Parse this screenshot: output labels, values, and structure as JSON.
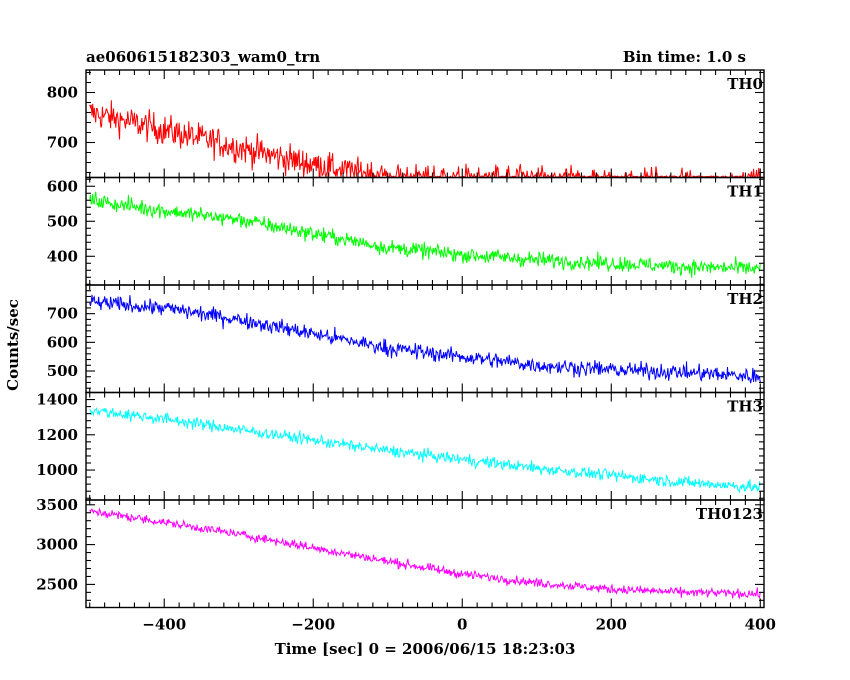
{
  "chart_data": {
    "type": "line",
    "title": "ae060615182303_wam0_trn",
    "subtitle": "Bin time: 1.0 s",
    "xlabel": "Time [sec] 0 = 2006/06/15 18:23:03",
    "ylabel": "Counts/sec",
    "xlim": [
      -505,
      405
    ],
    "x_ticks": [
      -400,
      -200,
      0,
      200,
      400
    ],
    "x_tick_labels": [
      "−400",
      "−200",
      "0",
      "200",
      "400"
    ],
    "grid": false,
    "series": [
      {
        "name": "TH0",
        "color": "#ff0000",
        "ylim": [
          630,
          845
        ],
        "y_ticks": [
          600,
          700,
          800
        ],
        "y_tick_labels": [
          "600",
          "700",
          "800"
        ],
        "x_start": -500,
        "x_end": 400,
        "trend": [
          [
            -500,
            760
          ],
          [
            -400,
            725
          ],
          [
            -300,
            690
          ],
          [
            -200,
            655
          ],
          [
            -100,
            630
          ],
          [
            0,
            625
          ],
          [
            100,
            625
          ],
          [
            200,
            620
          ],
          [
            300,
            615
          ],
          [
            400,
            615
          ]
        ],
        "noise": 28
      },
      {
        "name": "TH1",
        "color": "#00ff00",
        "ylim": [
          318,
          625
        ],
        "y_ticks": [
          400,
          500,
          600
        ],
        "y_tick_labels": [
          "400",
          "500",
          "600"
        ],
        "x_start": -500,
        "x_end": 400,
        "trend": [
          [
            -500,
            560
          ],
          [
            -400,
            530
          ],
          [
            -300,
            505
          ],
          [
            -200,
            465
          ],
          [
            -100,
            425
          ],
          [
            0,
            405
          ],
          [
            100,
            390
          ],
          [
            200,
            380
          ],
          [
            300,
            370
          ],
          [
            400,
            365
          ]
        ],
        "noise": 20
      },
      {
        "name": "TH2",
        "color": "#0000ff",
        "ylim": [
          425,
          800
        ],
        "y_ticks": [
          500,
          600,
          700
        ],
        "y_tick_labels": [
          "500",
          "600",
          "700"
        ],
        "x_start": -500,
        "x_end": 400,
        "trend": [
          [
            -500,
            740
          ],
          [
            -400,
            720
          ],
          [
            -300,
            680
          ],
          [
            -200,
            630
          ],
          [
            -100,
            580
          ],
          [
            0,
            550
          ],
          [
            100,
            520
          ],
          [
            200,
            505
          ],
          [
            300,
            495
          ],
          [
            400,
            480
          ]
        ],
        "noise": 25
      },
      {
        "name": "TH3",
        "color": "#00ffff",
        "ylim": [
          830,
          1440
        ],
        "y_ticks": [
          1000,
          1200,
          1400
        ],
        "y_tick_labels": [
          "1000",
          "1200",
          "1400"
        ],
        "x_start": -500,
        "x_end": 400,
        "trend": [
          [
            -500,
            1340
          ],
          [
            -400,
            1290
          ],
          [
            -300,
            1230
          ],
          [
            -200,
            1170
          ],
          [
            -100,
            1110
          ],
          [
            0,
            1060
          ],
          [
            100,
            1010
          ],
          [
            200,
            970
          ],
          [
            300,
            930
          ],
          [
            400,
            900
          ]
        ],
        "noise": 30
      },
      {
        "name": "TH0123",
        "color": "#ff00ff",
        "ylim": [
          2210,
          3560
        ],
        "y_ticks": [
          2500,
          3000,
          3500
        ],
        "y_tick_labels": [
          "2500",
          "3000",
          "3500"
        ],
        "x_start": -500,
        "x_end": 400,
        "trend": [
          [
            -500,
            3420
          ],
          [
            -400,
            3280
          ],
          [
            -300,
            3130
          ],
          [
            -200,
            2960
          ],
          [
            -100,
            2790
          ],
          [
            0,
            2630
          ],
          [
            100,
            2520
          ],
          [
            200,
            2440
          ],
          [
            300,
            2400
          ],
          [
            400,
            2380
          ]
        ],
        "noise": 50
      }
    ]
  }
}
